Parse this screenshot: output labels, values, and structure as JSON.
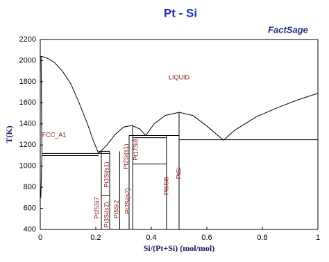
{
  "chart_data": {
    "type": "line",
    "title": "Pt - Si",
    "logo": "FactSage",
    "xlabel": "Si/(Pt+Si) (mol/mol)",
    "ylabel": "T(K)",
    "xlim": [
      0,
      1
    ],
    "xticks": [
      0,
      0.2,
      0.4,
      0.6,
      0.8,
      1
    ],
    "ylim": [
      400,
      2200
    ],
    "yticks": [
      400,
      600,
      800,
      1000,
      1200,
      1400,
      1600,
      1800,
      2000,
      2200
    ],
    "annotations": [
      "LIQUID",
      "FCC_A1",
      "Pt25Si7",
      "Pt3Si(s2)",
      "Pt3Si(s1)",
      "Pt5Si2",
      "Pt2Si(s2)",
      "Pt2Si(s1)",
      "Pt17Si8",
      "Pt6Si5",
      "PtSi"
    ],
    "series": [
      {
        "color": "#000000",
        "x": [
          0,
          0.02,
          0.05,
          0.08,
          0.11,
          0.14,
          0.17,
          0.19,
          0.21
        ],
        "values": [
          2042,
          2030,
          1985,
          1900,
          1780,
          1600,
          1400,
          1250,
          1120
        ]
      },
      {
        "color": "#000000",
        "x": [
          0.21,
          0.24,
          0.27,
          0.3,
          0.33,
          0.36,
          0.38
        ],
        "values": [
          1120,
          1200,
          1300,
          1370,
          1385,
          1350,
          1290
        ]
      },
      {
        "color": "#000000",
        "x": [
          0.38,
          0.41,
          0.45,
          0.5,
          0.55,
          0.6,
          0.66
        ],
        "values": [
          1290,
          1400,
          1480,
          1510,
          1480,
          1380,
          1245
        ]
      },
      {
        "color": "#000000",
        "x": [
          0.66,
          0.7,
          0.78,
          0.86,
          0.93,
          1
        ],
        "values": [
          1245,
          1340,
          1470,
          1560,
          1630,
          1690
        ]
      },
      {
        "color": "#000000",
        "x": [
          0.003,
          0.005,
          0.006,
          0.004,
          0.002
        ],
        "values": [
          2042,
          1400,
          1120,
          900,
          700
        ]
      },
      {
        "color": "#000000",
        "x": [
          0.006,
          0.25
        ],
        "values": [
          1120,
          1120
        ]
      },
      {
        "color": "#000000",
        "x": [
          0.006,
          0.21
        ],
        "values": [
          1100,
          1100
        ]
      },
      {
        "color": "#000000",
        "x": [
          0.21,
          0.25
        ],
        "values": [
          1140,
          1140
        ]
      },
      {
        "color": "#000000",
        "x": [
          0.32,
          0.5
        ],
        "values": [
          1290,
          1290
        ]
      },
      {
        "color": "#000000",
        "x": [
          0.333,
          0.4545
        ],
        "values": [
          1270,
          1270
        ]
      },
      {
        "color": "#000000",
        "x": [
          0.5,
          1
        ],
        "values": [
          1250,
          1250
        ]
      },
      {
        "color": "#000000",
        "x": [
          0.333,
          0.4545
        ],
        "values": [
          1020,
          1020
        ]
      },
      {
        "color": "#000000",
        "x": [
          0.22,
          0.25
        ],
        "values": [
          720,
          720
        ]
      },
      {
        "color": "#000000",
        "x": [
          0.22,
          0.22
        ],
        "values": [
          400,
          1140
        ]
      },
      {
        "color": "#000000",
        "x": [
          0.25,
          0.25
        ],
        "values": [
          400,
          1140
        ]
      },
      {
        "color": "#000000",
        "x": [
          0.286,
          0.286
        ],
        "values": [
          400,
          1140
        ]
      },
      {
        "color": "#000000",
        "x": [
          0.32,
          0.32
        ],
        "values": [
          400,
          1290
        ]
      },
      {
        "color": "#000000",
        "x": [
          0.333,
          0.333
        ],
        "values": [
          400,
          1385
        ]
      },
      {
        "color": "#000000",
        "x": [
          0.4545,
          0.4545
        ],
        "values": [
          400,
          1290
        ]
      },
      {
        "color": "#000000",
        "x": [
          0.5,
          0.5
        ],
        "values": [
          400,
          1510
        ]
      }
    ]
  }
}
